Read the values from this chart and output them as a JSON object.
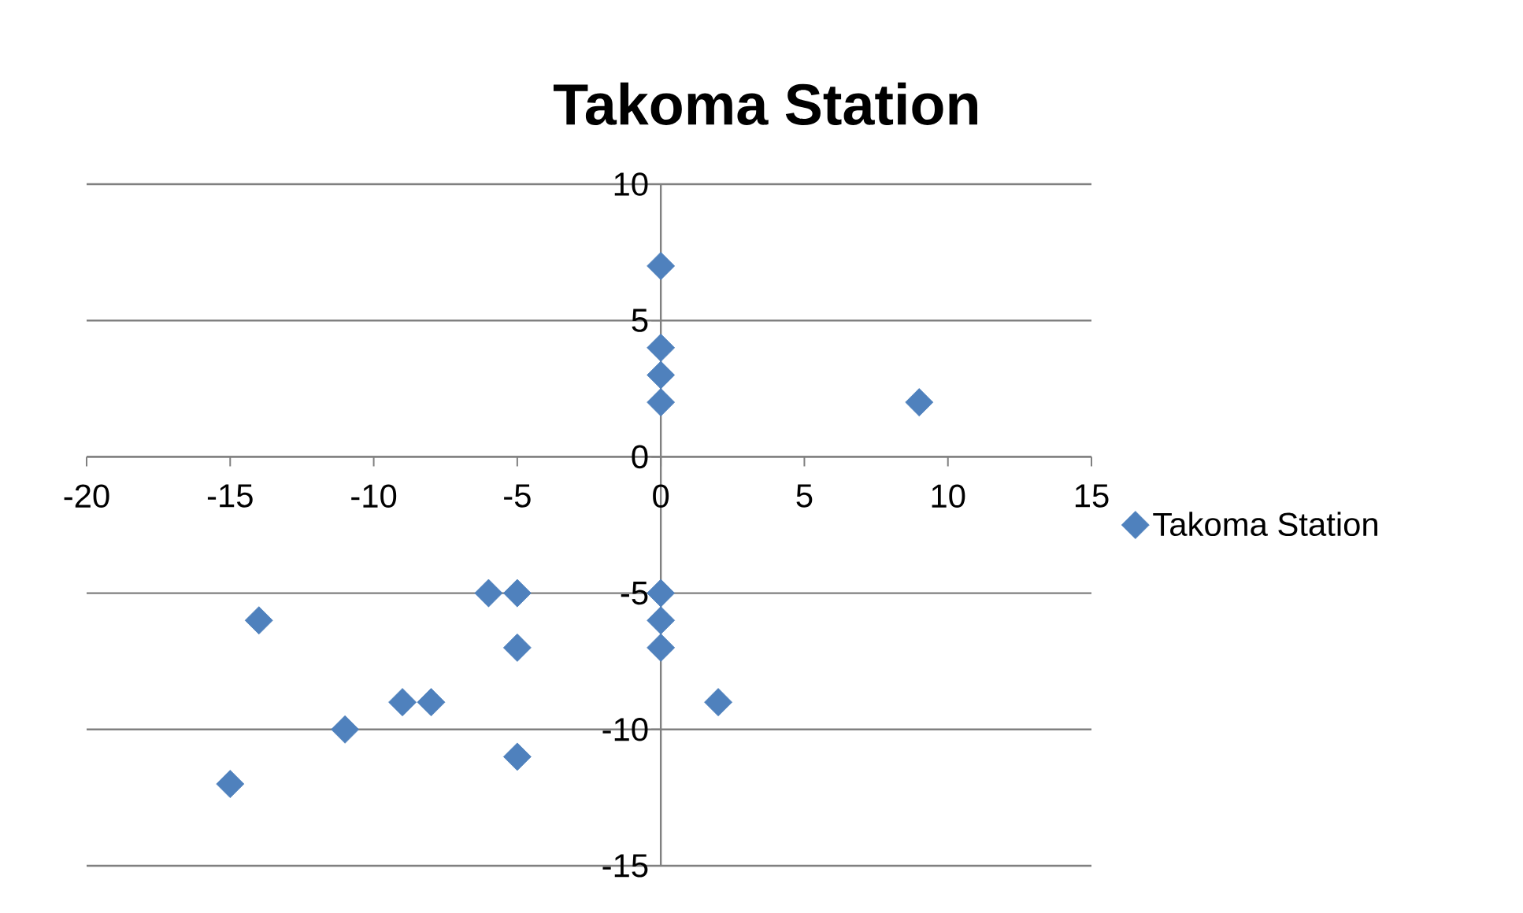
{
  "chart_data": {
    "type": "scatter",
    "title": "Takoma Station",
    "x": [
      0,
      0,
      0,
      0,
      9,
      0,
      0,
      0,
      2,
      -5,
      -6,
      -5,
      -14,
      -9,
      -8,
      -11,
      -15,
      -5
    ],
    "series": [
      {
        "name": "Takoma Station",
        "color": "#4f81bd",
        "values": [
          7,
          4,
          3,
          2,
          2,
          -5,
          -6,
          -7,
          -9,
          -5,
          -5,
          -7,
          -6,
          -9,
          -9,
          -10,
          -12,
          -11
        ]
      }
    ],
    "xlim": [
      -20,
      15
    ],
    "ylim": [
      -15,
      10
    ],
    "xticks": [
      -20,
      -15,
      -10,
      -5,
      0,
      5,
      10,
      15
    ],
    "yticks": [
      -15,
      -10,
      -5,
      0,
      5,
      10
    ],
    "grid": "y",
    "legend": "right",
    "marker": "diamond"
  }
}
